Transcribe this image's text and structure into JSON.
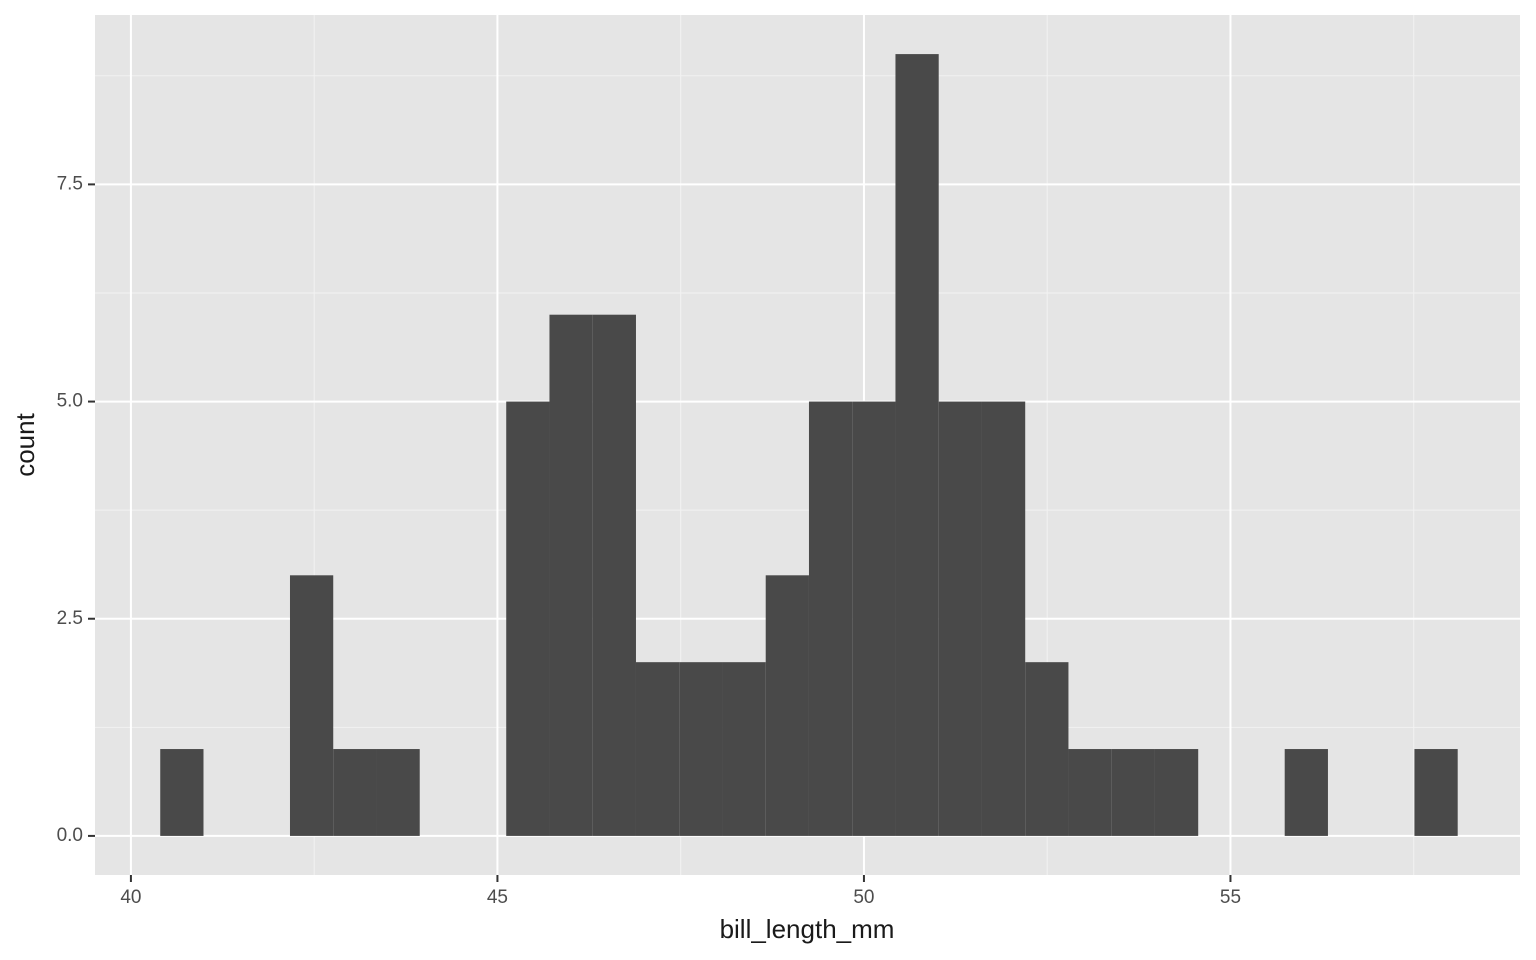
{
  "chart_data": {
    "type": "histogram",
    "x_label": "bill_length_mm",
    "y_label": "count",
    "bins": [
      40.4,
      40.99,
      41.58,
      42.17,
      42.76,
      43.35,
      43.94,
      44.53,
      45.12,
      45.71,
      46.3,
      46.89,
      47.48,
      48.07,
      48.66,
      49.25,
      49.84,
      50.43,
      51.02,
      51.61,
      52.2,
      52.79,
      53.38,
      53.97,
      54.56,
      55.15,
      55.74,
      56.33,
      56.92,
      57.51,
      58.1
    ],
    "values": [
      1,
      0,
      0,
      3,
      1,
      1,
      0,
      0,
      5,
      6,
      6,
      2,
      2,
      2,
      3,
      5,
      5,
      9,
      5,
      5,
      2,
      1,
      1,
      1,
      0,
      0,
      1,
      0,
      0,
      1
    ],
    "color": "#494949",
    "xlim": [
      39.51,
      58.95
    ],
    "xticks": [
      40,
      45,
      50,
      55
    ],
    "ylim": [
      -0.45,
      9.45
    ],
    "yticks": [
      {
        "value": 0,
        "label": "0.0"
      },
      2.5,
      {
        "value": 5,
        "label": "5.0"
      },
      7.5
    ],
    "grid": true
  }
}
